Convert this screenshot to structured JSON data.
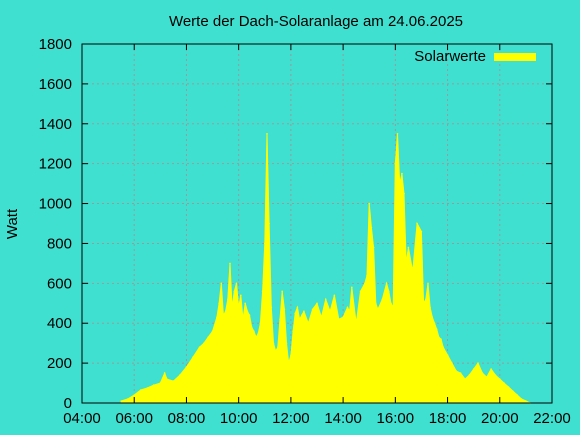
{
  "chart_data": {
    "type": "area",
    "title": "Werte der Dach-Solaranlage am 24.06.2025",
    "xlabel": "",
    "ylabel": "Watt",
    "xlim": [
      "04:00",
      "22:00"
    ],
    "ylim": [
      0,
      1800
    ],
    "x_ticks": [
      "04:00",
      "06:00",
      "08:00",
      "10:00",
      "12:00",
      "14:00",
      "16:00",
      "18:00",
      "20:00",
      "22:00"
    ],
    "y_ticks": [
      "0",
      "200",
      "400",
      "600",
      "800",
      "1000",
      "1200",
      "1400",
      "1600",
      "1800"
    ],
    "grid": true,
    "legend_position": "top-right",
    "colors": {
      "background": "#40e0d0",
      "series": "#ffff00",
      "grid": "#9a9a9a"
    },
    "series": [
      {
        "name": "Solarwerte",
        "x": [
          "05:30",
          "05:45",
          "06:00",
          "06:15",
          "06:30",
          "06:45",
          "07:00",
          "07:10",
          "07:15",
          "07:30",
          "07:45",
          "08:00",
          "08:15",
          "08:30",
          "08:40",
          "08:50",
          "09:00",
          "09:10",
          "09:15",
          "09:20",
          "09:25",
          "09:30",
          "09:35",
          "09:40",
          "09:45",
          "09:50",
          "09:55",
          "10:00",
          "10:05",
          "10:10",
          "10:15",
          "10:20",
          "10:25",
          "10:30",
          "10:35",
          "10:40",
          "10:45",
          "10:50",
          "10:55",
          "11:00",
          "11:05",
          "11:10",
          "11:15",
          "11:20",
          "11:25",
          "11:30",
          "11:35",
          "11:40",
          "11:45",
          "11:50",
          "11:55",
          "12:00",
          "12:05",
          "12:10",
          "12:15",
          "12:20",
          "12:25",
          "12:30",
          "12:40",
          "12:50",
          "13:00",
          "13:10",
          "13:20",
          "13:30",
          "13:40",
          "13:50",
          "14:00",
          "14:10",
          "14:15",
          "14:20",
          "14:30",
          "14:40",
          "14:50",
          "14:55",
          "15:00",
          "15:05",
          "15:10",
          "15:15",
          "15:20",
          "15:30",
          "15:40",
          "15:45",
          "15:50",
          "15:55",
          "16:00",
          "16:05",
          "16:10",
          "16:15",
          "16:20",
          "16:25",
          "16:30",
          "16:40",
          "16:50",
          "17:00",
          "17:05",
          "17:10",
          "17:15",
          "17:20",
          "17:25",
          "17:30",
          "17:35",
          "17:40",
          "17:45",
          "17:50",
          "18:00",
          "18:10",
          "18:20",
          "18:30",
          "18:40",
          "18:50",
          "19:00",
          "19:10",
          "19:20",
          "19:30",
          "19:40",
          "19:50",
          "20:00",
          "20:10",
          "20:20",
          "20:30",
          "20:40",
          "20:50",
          "21:00",
          "21:10"
        ],
        "y": [
          10,
          20,
          40,
          65,
          75,
          90,
          100,
          150,
          120,
          110,
          140,
          180,
          230,
          280,
          300,
          330,
          360,
          430,
          500,
          600,
          440,
          460,
          520,
          700,
          480,
          560,
          600,
          480,
          540,
          420,
          500,
          460,
          440,
          380,
          360,
          330,
          350,
          400,
          560,
          800,
          1350,
          900,
          480,
          300,
          260,
          280,
          420,
          560,
          470,
          300,
          200,
          240,
          360,
          450,
          480,
          420,
          440,
          460,
          400,
          470,
          500,
          430,
          520,
          460,
          540,
          420,
          430,
          480,
          460,
          580,
          400,
          560,
          600,
          640,
          1000,
          880,
          780,
          500,
          470,
          520,
          600,
          560,
          500,
          480,
          1200,
          1350,
          1100,
          1150,
          1050,
          700,
          780,
          660,
          900,
          860,
          500,
          520,
          600,
          480,
          430,
          400,
          370,
          330,
          320,
          280,
          240,
          200,
          160,
          150,
          120,
          140,
          170,
          200,
          150,
          130,
          170,
          140,
          120,
          100,
          80,
          60,
          40,
          20,
          10,
          0
        ]
      }
    ]
  }
}
